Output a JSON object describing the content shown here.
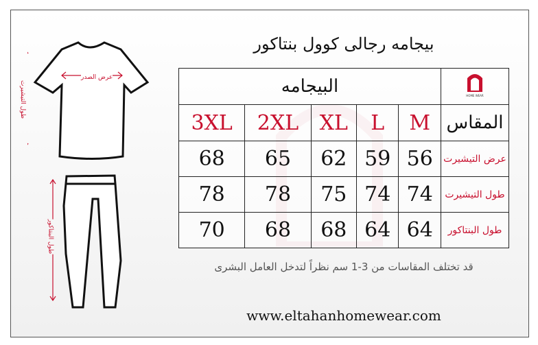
{
  "title": "بيجامه رجالى كوول بنتاكور",
  "table": {
    "group_header": "البيجامه",
    "measure_header": "المقاس",
    "logo_text": "HOME WEAR",
    "sizes": [
      "3XL",
      "2XL",
      "XL",
      "L",
      "M"
    ],
    "rows": [
      {
        "label": "عرض التيشيرت",
        "values": [
          "68",
          "65",
          "62",
          "59",
          "56"
        ]
      },
      {
        "label": "طول التيشيرت",
        "values": [
          "78",
          "78",
          "75",
          "74",
          "74"
        ]
      },
      {
        "label": "طول البنتاكور",
        "values": [
          "70",
          "68",
          "68",
          "64",
          "64"
        ]
      }
    ]
  },
  "note": "قد تختلف المقاسات من 3-1 سم نظراً لتدخل العامل البشرى",
  "website": "www.eltahanhomewear.com",
  "diagram": {
    "chest_label": "عرض الصدر",
    "shirt_length_label": "طول التيشيرت",
    "pants_length_label": "طول البنتاكور"
  },
  "colors": {
    "accent": "#c8102e",
    "border": "#222222"
  }
}
